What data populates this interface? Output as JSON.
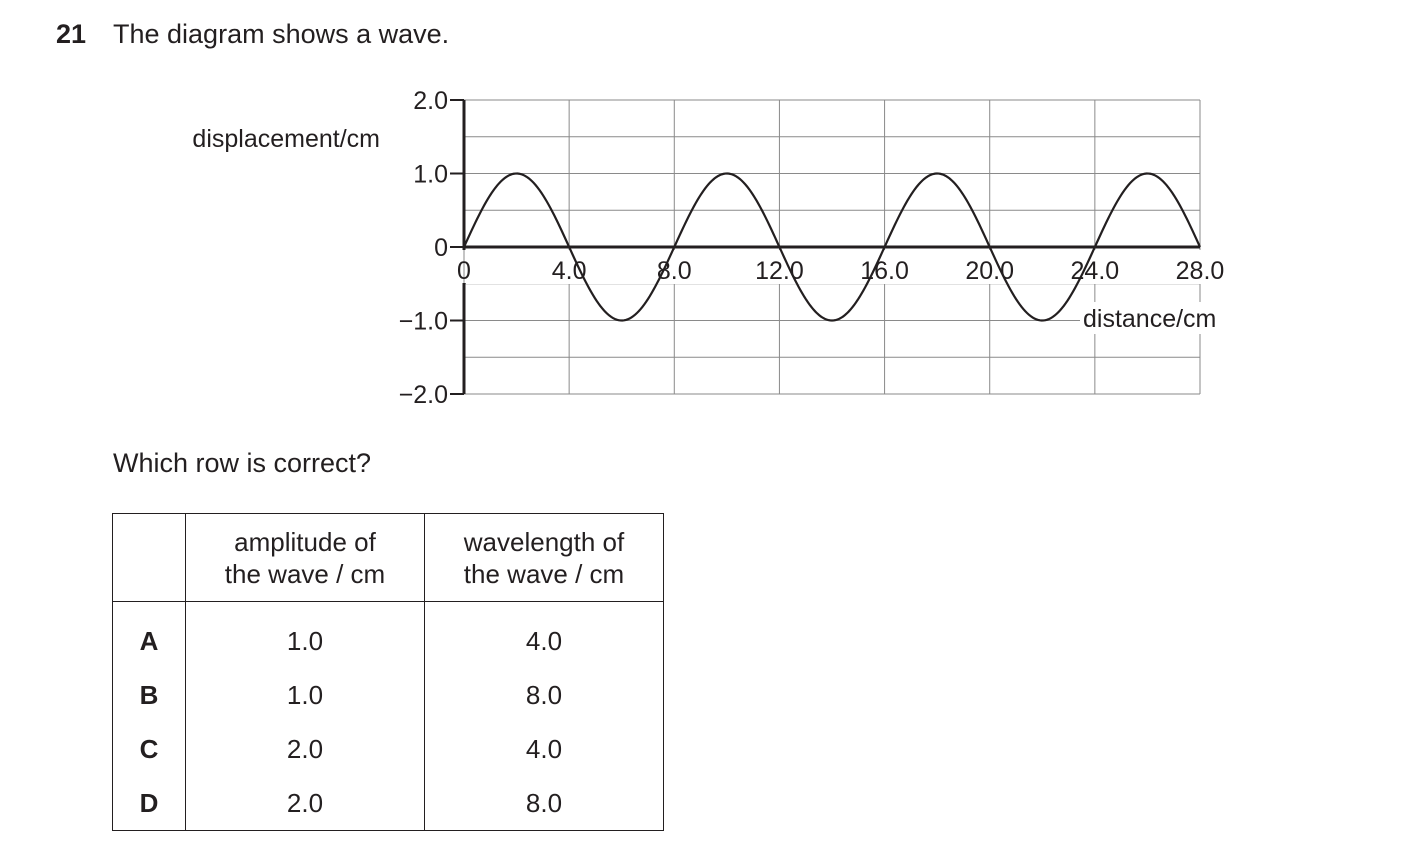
{
  "question": {
    "number": "21",
    "text": "The diagram shows a wave.",
    "prompt": "Which row is correct?"
  },
  "chart_data": {
    "type": "line",
    "ylabel": "displacement / cm",
    "xlabel": "distance / cm",
    "x_ticks": [
      "0",
      "4.0",
      "8.0",
      "12.0",
      "16.0",
      "20.0",
      "24.0",
      "28.0"
    ],
    "y_ticks": [
      "2.0",
      "1.0",
      "0",
      "−1.0",
      "−2.0"
    ],
    "xlim": [
      0,
      28
    ],
    "ylim": [
      -2,
      2
    ],
    "grid": true,
    "series": [
      {
        "amplitude": 1.0,
        "wavelength": 8.0,
        "x_start": 0,
        "x_end": 28
      }
    ]
  },
  "table": {
    "headers": [
      "",
      "amplitude of\nthe wave / cm",
      "wavelength of\nthe wave / cm"
    ],
    "rows": [
      {
        "label": "A",
        "amplitude": "1.0",
        "wavelength": "4.0"
      },
      {
        "label": "B",
        "amplitude": "1.0",
        "wavelength": "8.0"
      },
      {
        "label": "C",
        "amplitude": "2.0",
        "wavelength": "4.0"
      },
      {
        "label": "D",
        "amplitude": "2.0",
        "wavelength": "8.0"
      }
    ]
  }
}
